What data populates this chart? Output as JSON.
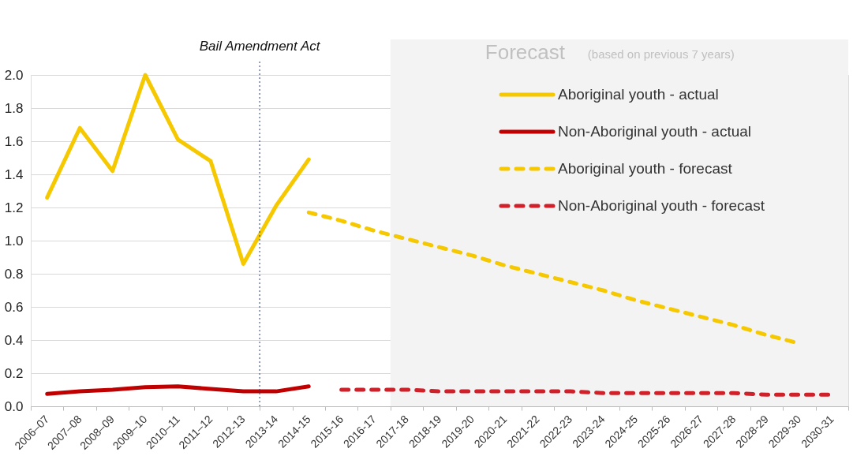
{
  "chart_data": {
    "type": "line",
    "categories": [
      "2006–07",
      "2007–08",
      "2008–09",
      "2009–10",
      "2010–11",
      "2011–12",
      "2012-13",
      "2013-14",
      "2014-15",
      "2015-16",
      "2016-17",
      "2017-18",
      "2018-19",
      "2019-20",
      "2020-21",
      "2021-22",
      "2022-23",
      "2023-24",
      "2024-25",
      "2025-26",
      "2026-27",
      "2027-28",
      "2028-29",
      "2029-30",
      "2030-31"
    ],
    "series": [
      {
        "name": "Aboriginal youth - actual",
        "color": "#f5c800",
        "line_style": "solid",
        "values": [
          1.26,
          1.68,
          1.42,
          2.0,
          1.61,
          1.48,
          0.86,
          1.21,
          1.49,
          null,
          null,
          null,
          null,
          null,
          null,
          null,
          null,
          null,
          null,
          null,
          null,
          null,
          null,
          null,
          null
        ]
      },
      {
        "name": "Non-Aboriginal youth - actual",
        "color": "#c00000",
        "line_style": "solid",
        "values": [
          0.075,
          0.09,
          0.1,
          0.115,
          0.12,
          0.105,
          0.09,
          0.09,
          0.12,
          null,
          null,
          null,
          null,
          null,
          null,
          null,
          null,
          null,
          null,
          null,
          null,
          null,
          null,
          null,
          null
        ]
      },
      {
        "name": "Aboriginal youth - forecast",
        "color": "#f5c800",
        "line_style": "dashed",
        "values": [
          null,
          null,
          null,
          null,
          null,
          null,
          null,
          null,
          1.17,
          1.12,
          1.06,
          1.01,
          0.96,
          0.91,
          0.85,
          0.8,
          0.75,
          0.7,
          0.64,
          0.59,
          0.54,
          0.49,
          0.43,
          0.38,
          null
        ]
      },
      {
        "name": "Non-Aboriginal youth - forecast",
        "color": "#d0202a",
        "line_style": "dashed",
        "values": [
          null,
          null,
          null,
          null,
          null,
          null,
          null,
          null,
          null,
          0.1,
          0.1,
          0.1,
          0.09,
          0.09,
          0.09,
          0.09,
          0.09,
          0.08,
          0.08,
          0.08,
          0.08,
          0.08,
          0.07,
          0.07,
          0.07
        ]
      }
    ],
    "ylim": [
      0,
      2.0
    ],
    "yticks": [
      {
        "value": 0,
        "label": "0.0"
      },
      {
        "value": 0.2,
        "label": "0.2"
      },
      {
        "value": 0.4,
        "label": "0.4"
      },
      {
        "value": 0.6,
        "label": "0.6"
      },
      {
        "value": 0.8,
        "label": "0.8"
      },
      {
        "value": 1.0,
        "label": "1.0"
      },
      {
        "value": 1.2,
        "label": "1.2"
      },
      {
        "value": 1.4,
        "label": "1.4"
      },
      {
        "value": 1.6,
        "label": "1.6"
      },
      {
        "value": 1.8,
        "label": "1.8"
      },
      {
        "value": 2.0,
        "label": "2.0"
      }
    ],
    "grid": "y",
    "legend": "top right",
    "ref_lines": [
      {
        "axis": "x",
        "value": "2013-14",
        "label": "Bail Amendment Act",
        "color": "#1f3a7a",
        "line_style": "dotted"
      }
    ],
    "bands": [
      {
        "axis": "x",
        "from": "2017-18",
        "to": "2030-31",
        "label": "Forecast",
        "color": "#f3f3f3"
      }
    ],
    "annotations": [
      "(based on previous 7 years)"
    ]
  }
}
